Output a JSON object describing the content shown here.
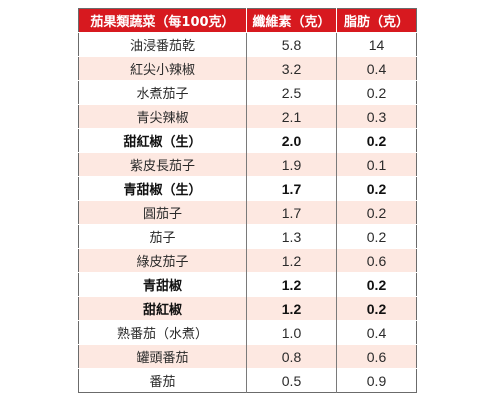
{
  "colors": {
    "header_background": "#d7191f",
    "header_text": "#ffffff",
    "row_stripe": "#fde8e1",
    "row_plain": "#ffffff"
  },
  "table": {
    "headers": [
      "茄果類蔬菜（每100克）",
      "纖維素（克）",
      "脂肪（克）"
    ],
    "rows": [
      {
        "name": "油浸番茄乾",
        "fiber": "5.8",
        "fat": "14",
        "bold": false
      },
      {
        "name": "紅尖小辣椒",
        "fiber": "3.2",
        "fat": "0.4",
        "bold": false
      },
      {
        "name": "水煮茄子",
        "fiber": "2.5",
        "fat": "0.2",
        "bold": false
      },
      {
        "name": "青尖辣椒",
        "fiber": "2.1",
        "fat": "0.3",
        "bold": false
      },
      {
        "name": "甜紅椒（生）",
        "fiber": "2.0",
        "fat": "0.2",
        "bold": true
      },
      {
        "name": "紫皮長茄子",
        "fiber": "1.9",
        "fat": "0.1",
        "bold": false
      },
      {
        "name": "青甜椒（生）",
        "fiber": "1.7",
        "fat": "0.2",
        "bold": true
      },
      {
        "name": "圓茄子",
        "fiber": "1.7",
        "fat": "0.2",
        "bold": false
      },
      {
        "name": "茄子",
        "fiber": "1.3",
        "fat": "0.2",
        "bold": false
      },
      {
        "name": "綠皮茄子",
        "fiber": "1.2",
        "fat": "0.6",
        "bold": false
      },
      {
        "name": "青甜椒",
        "fiber": "1.2",
        "fat": "0.2",
        "bold": true
      },
      {
        "name": "甜紅椒",
        "fiber": "1.2",
        "fat": "0.2",
        "bold": true
      },
      {
        "name": "熟番茄（水煮）",
        "fiber": "1.0",
        "fat": "0.4",
        "bold": false
      },
      {
        "name": "罐頭番茄",
        "fiber": "0.8",
        "fat": "0.6",
        "bold": false
      },
      {
        "name": "番茄",
        "fiber": "0.5",
        "fat": "0.9",
        "bold": false
      }
    ]
  }
}
